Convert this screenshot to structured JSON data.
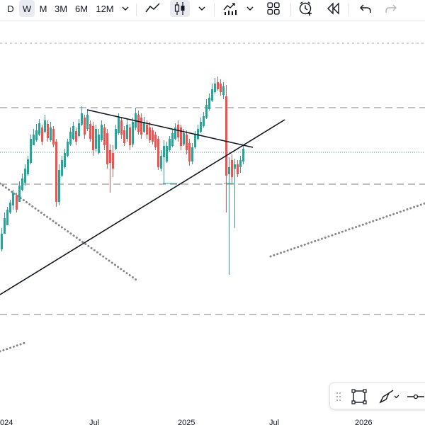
{
  "toolbar": {
    "intervals": [
      {
        "label": "D",
        "active": false
      },
      {
        "label": "W",
        "active": true
      },
      {
        "label": "M",
        "active": false
      },
      {
        "label": "3M",
        "active": false
      },
      {
        "label": "6M",
        "active": false
      },
      {
        "label": "12M",
        "active": false
      }
    ],
    "icons": [
      "chevron-down-icon",
      "line-chart-icon",
      "candlestick-icon",
      "chevron-down-icon",
      "indicators-icon",
      "layout-grid-icon",
      "alert-clock-icon",
      "replay-icon",
      "undo-icon",
      "redo-icon"
    ]
  },
  "xaxis": {
    "labels": [
      "024",
      "Jul",
      "2025",
      "Jul",
      "2026"
    ]
  },
  "colors": {
    "up": "#26a69a",
    "down": "#ef5350",
    "trendline": "#131722",
    "dotted": "#888888",
    "dashed": "#aaaaaa",
    "price_line": "#26a69a"
  },
  "floating_toolbar": {
    "icons": [
      "drag-handle-icon",
      "select-rectangle-icon",
      "brush-icon",
      "horizontal-line-icon"
    ]
  }
}
